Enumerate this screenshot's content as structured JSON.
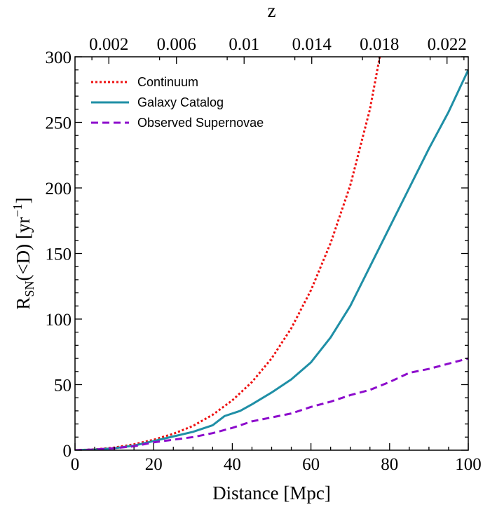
{
  "chart_data": {
    "type": "line",
    "xlabel": "Distance [Mpc]",
    "ylabel": "R_SN(<D) [yr^-1]",
    "ylabel_parts": {
      "main": "R",
      "sub": "SN",
      "mid": "(<D) [yr",
      "sup": "−1",
      "end": "]"
    },
    "top_axis_label": "z",
    "xlim": [
      0,
      100
    ],
    "ylim": [
      0,
      300
    ],
    "x_ticks": [
      "0",
      "20",
      "40",
      "60",
      "80",
      "100"
    ],
    "x_tick_values": [
      0,
      20,
      40,
      60,
      80,
      100
    ],
    "y_ticks": [
      "0",
      "50",
      "100",
      "150",
      "200",
      "250",
      "300"
    ],
    "y_tick_values": [
      0,
      50,
      100,
      150,
      200,
      250,
      300
    ],
    "top_ticks": [
      "0.002",
      "0.006",
      "0.01",
      "0.014",
      "0.018",
      "0.022"
    ],
    "top_tick_distances": [
      8.6,
      25.8,
      43.0,
      60.2,
      77.4,
      94.6
    ],
    "grid": false,
    "legend_position": "top-left",
    "series": [
      {
        "name": "Continuum",
        "color": "#ee1111",
        "style": "dotted",
        "x": [
          0,
          5,
          10,
          15,
          20,
          25,
          30,
          35,
          40,
          45,
          50,
          55,
          60,
          65,
          70,
          75,
          77.5
        ],
        "y": [
          0,
          0.6,
          2,
          4.5,
          8,
          12.5,
          18.5,
          27,
          38,
          52,
          70,
          93,
          122,
          158,
          202,
          260,
          300
        ]
      },
      {
        "name": "Galaxy Catalog",
        "color": "#1f8fa6",
        "style": "solid",
        "x": [
          0,
          5,
          10,
          15,
          20,
          25,
          30,
          35,
          38,
          42,
          45,
          50,
          55,
          60,
          65,
          70,
          75,
          80,
          85,
          90,
          95,
          100
        ],
        "y": [
          0,
          0.5,
          1.5,
          3.5,
          7,
          10.5,
          14,
          19,
          26,
          30,
          35,
          44,
          54,
          67,
          86,
          110,
          140,
          170,
          200,
          230,
          258,
          290
        ]
      },
      {
        "name": "Observed Supernovae",
        "color": "#8d0ccc",
        "style": "dashed",
        "x": [
          0,
          5,
          10,
          15,
          20,
          25,
          30,
          35,
          40,
          45,
          50,
          55,
          60,
          65,
          70,
          75,
          80,
          85,
          90,
          95,
          100
        ],
        "y": [
          0,
          0.5,
          1.5,
          3,
          6,
          8,
          10,
          13,
          17,
          22,
          25,
          28,
          33,
          37,
          42,
          46,
          52,
          59,
          62,
          66,
          70
        ]
      }
    ]
  }
}
